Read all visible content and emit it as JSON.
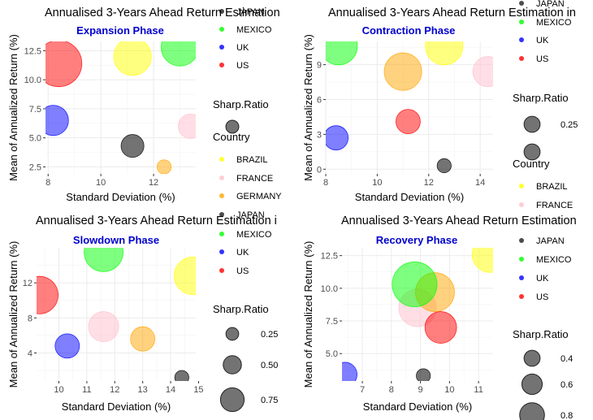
{
  "colors": {
    "BRAZIL": "#ffff00",
    "FRANCE": "#ffc0cb",
    "GERMANY": "#ffa500",
    "JAPAN": "#000000",
    "MEXICO": "#00ff00",
    "UK": "#0000ff",
    "US": "#ff0000",
    "subtitle": "#0000cd",
    "grid": "#ebebeb"
  },
  "legend_titles": {
    "size": "Sharp.Ratio",
    "color": "Country"
  },
  "chart_data": [
    {
      "type": "scatter",
      "title": "Annualised 3-Years Ahead Return Estimation",
      "subtitle": "Expansion Phase",
      "xlabel": "Standard Deviation (%)",
      "ylabel": "Mean of Annualized Return (%)",
      "xlim": [
        7.9,
        13.6
      ],
      "ylim": [
        1.9,
        13.3
      ],
      "xticks": [
        8,
        10,
        12
      ],
      "yticks": [
        2.5,
        5.0,
        7.5,
        10.0,
        12.5
      ],
      "xtick_labels": [
        "8",
        "10",
        "12"
      ],
      "ytick_labels": [
        "2.5",
        "5.0",
        "7.5",
        "10.0",
        "12.5"
      ],
      "grid": true,
      "points": [
        {
          "country": "BRAZIL",
          "x": 11.2,
          "y": 12.0,
          "size": 0.95
        },
        {
          "country": "FRANCE",
          "x": 13.4,
          "y": 6.0,
          "size": 0.5
        },
        {
          "country": "GERMANY",
          "x": 12.4,
          "y": 2.5,
          "size": 0.15
        },
        {
          "country": "JAPAN",
          "x": 11.2,
          "y": 4.3,
          "size": 0.45
        },
        {
          "country": "MEXICO",
          "x": 13.0,
          "y": 12.8,
          "size": 0.95
        },
        {
          "country": "UK",
          "x": 8.2,
          "y": 6.5,
          "size": 0.7
        },
        {
          "country": "US",
          "x": 8.4,
          "y": 11.4,
          "size": 1.25
        }
      ],
      "legend": {
        "color_entries_top": [
          "JAPAN",
          "MEXICO",
          "UK",
          "US"
        ],
        "size_title": "Sharp.Ratio",
        "size_entries": [
          {
            "label": "",
            "size": 0.35
          }
        ],
        "color_title": "Country",
        "color_entries": [
          "BRAZIL",
          "FRANCE",
          "GERMANY",
          "JAPAN"
        ]
      }
    },
    {
      "type": "scatter",
      "title": "Annualised 3-Years Ahead Return Estimation in",
      "subtitle": "Contraction Phase",
      "xlabel": "Standard Deviation (%)",
      "ylabel": "Mean of Annualized Return (%)",
      "xlim": [
        8.0,
        14.5
      ],
      "ylim": [
        -0.4,
        11.0
      ],
      "xticks": [
        8,
        10,
        12,
        14
      ],
      "yticks": [
        0,
        3,
        6,
        9
      ],
      "xtick_labels": [
        "8",
        "10",
        "12",
        "14"
      ],
      "ytick_labels": [
        "0",
        "3",
        "6",
        "9"
      ],
      "grid": true,
      "points": [
        {
          "country": "BRAZIL",
          "x": 12.6,
          "y": 10.6,
          "size": 0.95
        },
        {
          "country": "FRANCE",
          "x": 14.3,
          "y": 8.4,
          "size": 0.7
        },
        {
          "country": "GERMANY",
          "x": 11.0,
          "y": 8.4,
          "size": 0.95
        },
        {
          "country": "JAPAN",
          "x": 12.6,
          "y": 0.3,
          "size": 0.15
        },
        {
          "country": "MEXICO",
          "x": 8.5,
          "y": 10.6,
          "size": 0.95
        },
        {
          "country": "UK",
          "x": 8.4,
          "y": 2.7,
          "size": 0.5
        },
        {
          "country": "US",
          "x": 11.2,
          "y": 4.1,
          "size": 0.5
        }
      ],
      "legend": {
        "color_entries_top": [
          "JAPAN",
          "MEXICO",
          "UK",
          "US"
        ],
        "size_title": "Sharp.Ratio",
        "size_entries": [
          {
            "label": "0.25",
            "size": 0.4
          },
          {
            "label": "",
            "size": 0.4
          }
        ],
        "color_title": "Country",
        "color_entries": [
          "BRAZIL",
          "FRANCE"
        ]
      }
    },
    {
      "type": "scatter",
      "title": "Annualised 3-Years Ahead Return Estimation i",
      "subtitle": "Slowdown Phase",
      "xlabel": "Standard Deviation (%)",
      "ylabel": "Mean of Annualized Return (%)",
      "xlim": [
        9.2,
        14.9
      ],
      "ylim": [
        0.8,
        16.0
      ],
      "xticks": [
        10,
        11,
        12,
        13,
        14,
        15
      ],
      "yticks": [
        4,
        8,
        12
      ],
      "xtick_labels": [
        "10",
        "11",
        "12",
        "13",
        "14",
        "15"
      ],
      "ytick_labels": [
        "4",
        "8",
        "12"
      ],
      "grid": true,
      "points": [
        {
          "country": "BRAZIL",
          "x": 14.8,
          "y": 12.8,
          "size": 0.95
        },
        {
          "country": "FRANCE",
          "x": 11.6,
          "y": 7.0,
          "size": 0.7
        },
        {
          "country": "GERMANY",
          "x": 13.0,
          "y": 5.6,
          "size": 0.5
        },
        {
          "country": "JAPAN",
          "x": 14.4,
          "y": 1.2,
          "size": 0.15
        },
        {
          "country": "MEXICO",
          "x": 11.6,
          "y": 15.5,
          "size": 1.0
        },
        {
          "country": "UK",
          "x": 10.3,
          "y": 4.8,
          "size": 0.5
        },
        {
          "country": "US",
          "x": 9.3,
          "y": 10.6,
          "size": 0.95
        }
      ],
      "legend": {
        "color_entries_top": [
          "MEXICO",
          "UK",
          "US"
        ],
        "size_title": "Sharp.Ratio",
        "size_entries": [
          {
            "label": "0.25",
            "size": 0.25
          },
          {
            "label": "0.50",
            "size": 0.5
          },
          {
            "label": "0.75",
            "size": 0.75
          }
        ],
        "color_title": "",
        "color_entries": []
      }
    },
    {
      "type": "scatter",
      "title": "Annualised 3-Years Ahead Return Estimation",
      "subtitle": "Recovery Phase",
      "xlabel": "Standard Deviation (%)",
      "ylabel": "Mean of Annualized Return (%)",
      "xlim": [
        6.3,
        11.5
      ],
      "ylim": [
        2.9,
        13.1
      ],
      "xticks": [
        7,
        8,
        9,
        10,
        11
      ],
      "yticks": [
        5.0,
        7.5,
        10.0,
        12.5
      ],
      "xtick_labels": [
        "7",
        "8",
        "9",
        "10",
        "11"
      ],
      "ytick_labels": [
        "5.0",
        "7.5",
        "10.0",
        "12.5"
      ],
      "grid": true,
      "points": [
        {
          "country": "BRAZIL",
          "x": 11.4,
          "y": 12.6,
          "size": 0.9
        },
        {
          "country": "FRANCE",
          "x": 8.9,
          "y": 8.5,
          "size": 0.95
        },
        {
          "country": "GERMANY",
          "x": 9.5,
          "y": 9.7,
          "size": 1.0
        },
        {
          "country": "JAPAN",
          "x": 9.1,
          "y": 3.3,
          "size": 0.15
        },
        {
          "country": "MEXICO",
          "x": 8.8,
          "y": 10.3,
          "size": 1.2
        },
        {
          "country": "UK",
          "x": 6.4,
          "y": 3.4,
          "size": 0.5
        },
        {
          "country": "US",
          "x": 9.7,
          "y": 7.0,
          "size": 0.75
        }
      ],
      "legend": {
        "color_entries_top": [
          "JAPAN",
          "MEXICO",
          "UK",
          "US"
        ],
        "size_title": "Sharp.Ratio",
        "size_entries": [
          {
            "label": "0.4",
            "size": 0.4
          },
          {
            "label": "0.6",
            "size": 0.6
          },
          {
            "label": "0.8",
            "size": 0.8
          }
        ],
        "color_title": "",
        "color_entries": []
      }
    }
  ]
}
